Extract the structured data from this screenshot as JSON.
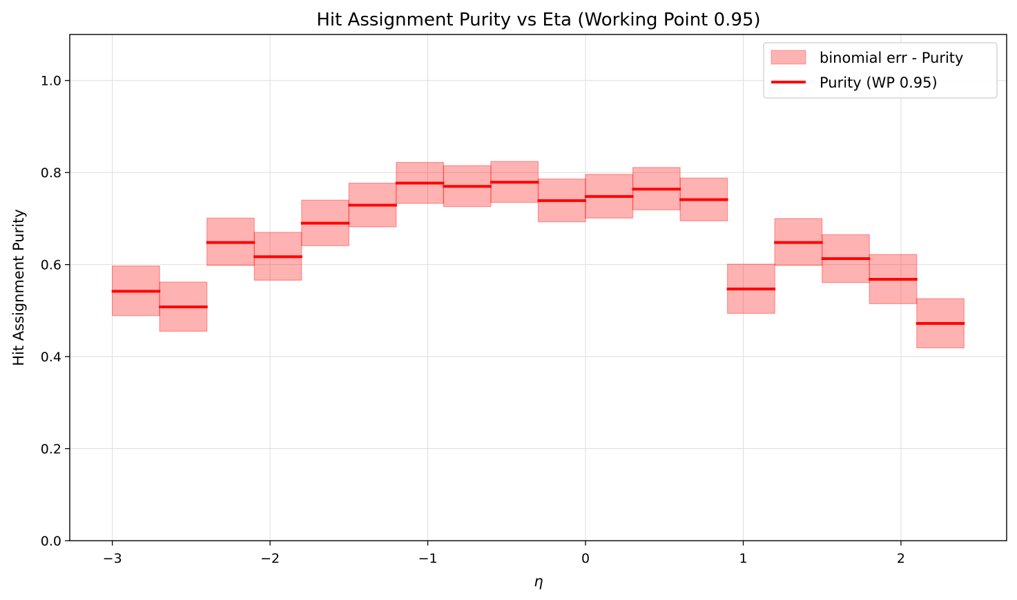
{
  "chart_data": {
    "type": "bar",
    "title": "Hit Assignment Purity vs Eta (Working Point 0.95)",
    "xlabel": "η",
    "ylabel": "Hit Assignment Purity",
    "xlim": [
      -3.27,
      2.67
    ],
    "ylim": [
      0.0,
      1.1
    ],
    "xticks": [
      -3,
      -2,
      -1,
      0,
      1,
      2
    ],
    "xtick_labels": [
      "−3",
      "−2",
      "−1",
      "0",
      "1",
      "2"
    ],
    "yticks": [
      0.0,
      0.2,
      0.4,
      0.6,
      0.8,
      1.0
    ],
    "ytick_labels": [
      "0.0",
      "0.2",
      "0.4",
      "0.6",
      "0.8",
      "1.0"
    ],
    "grid": true,
    "legend_position": "top-right",
    "bins": [
      {
        "x_low": -3.0,
        "x_high": -2.7,
        "purity": 0.542,
        "err_low": 0.489,
        "err_high": 0.597
      },
      {
        "x_low": -2.7,
        "x_high": -2.4,
        "purity": 0.508,
        "err_low": 0.455,
        "err_high": 0.562
      },
      {
        "x_low": -2.4,
        "x_high": -2.1,
        "purity": 0.648,
        "err_low": 0.598,
        "err_high": 0.701
      },
      {
        "x_low": -2.1,
        "x_high": -1.8,
        "purity": 0.617,
        "err_low": 0.566,
        "err_high": 0.67
      },
      {
        "x_low": -1.8,
        "x_high": -1.5,
        "purity": 0.69,
        "err_low": 0.641,
        "err_high": 0.74
      },
      {
        "x_low": -1.5,
        "x_high": -1.2,
        "purity": 0.729,
        "err_low": 0.682,
        "err_high": 0.777
      },
      {
        "x_low": -1.2,
        "x_high": -0.9,
        "purity": 0.777,
        "err_low": 0.733,
        "err_high": 0.822
      },
      {
        "x_low": -0.9,
        "x_high": -0.6,
        "purity": 0.77,
        "err_low": 0.726,
        "err_high": 0.815
      },
      {
        "x_low": -0.6,
        "x_high": -0.3,
        "purity": 0.779,
        "err_low": 0.735,
        "err_high": 0.824
      },
      {
        "x_low": -0.3,
        "x_high": 0.0,
        "purity": 0.739,
        "err_low": 0.693,
        "err_high": 0.786
      },
      {
        "x_low": 0.0,
        "x_high": 0.3,
        "purity": 0.748,
        "err_low": 0.701,
        "err_high": 0.796
      },
      {
        "x_low": 0.3,
        "x_high": 0.6,
        "purity": 0.764,
        "err_low": 0.719,
        "err_high": 0.811
      },
      {
        "x_low": 0.6,
        "x_high": 0.9,
        "purity": 0.741,
        "err_low": 0.695,
        "err_high": 0.788
      },
      {
        "x_low": 0.9,
        "x_high": 1.2,
        "purity": 0.547,
        "err_low": 0.494,
        "err_high": 0.601
      },
      {
        "x_low": 1.2,
        "x_high": 1.5,
        "purity": 0.648,
        "err_low": 0.598,
        "err_high": 0.7
      },
      {
        "x_low": 1.5,
        "x_high": 1.8,
        "purity": 0.613,
        "err_low": 0.561,
        "err_high": 0.665
      },
      {
        "x_low": 1.8,
        "x_high": 2.1,
        "purity": 0.568,
        "err_low": 0.515,
        "err_high": 0.622
      },
      {
        "x_low": 2.1,
        "x_high": 2.4,
        "purity": 0.472,
        "err_low": 0.419,
        "err_high": 0.526
      }
    ],
    "series": [
      {
        "name": "binomial err - Purity",
        "kind": "error-band",
        "color": "#ff9999"
      },
      {
        "name": "Purity (WP 0.95)",
        "kind": "step-line",
        "color": "#ff0000"
      }
    ]
  },
  "colors": {
    "band_fill": "#ff0000",
    "band_edge": "#ff0000",
    "line": "#ff0000",
    "grid": "#dddddd",
    "axes": "#000000"
  }
}
